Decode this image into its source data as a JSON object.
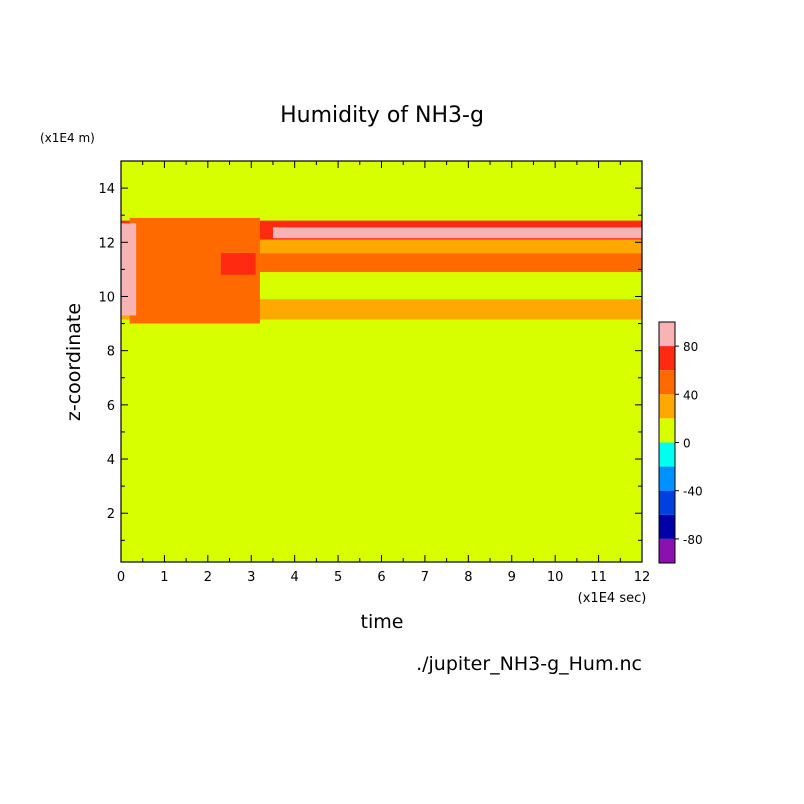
{
  "chart_data": {
    "type": "heatmap",
    "title": "Humidity of NH3-g",
    "xlabel": "time",
    "ylabel": "z-coordinate",
    "x_unit": "(x1E4 sec)",
    "y_unit": "(x1E4 m)",
    "source_file": "./jupiter_NH3-g_Hum.nc",
    "xlim": [
      0,
      12
    ],
    "ylim": [
      0.2,
      15
    ],
    "x_ticks": [
      "0",
      "1",
      "2",
      "3",
      "4",
      "5",
      "6",
      "7",
      "8",
      "9",
      "10",
      "11",
      "12"
    ],
    "y_ticks": [
      "2",
      "4",
      "6",
      "8",
      "10",
      "12",
      "14"
    ],
    "x_tick_values": [
      0,
      1,
      2,
      3,
      4,
      5,
      6,
      7,
      8,
      9,
      10,
      11,
      12
    ],
    "y_tick_values": [
      2,
      4,
      6,
      8,
      10,
      12,
      14
    ],
    "colorbar": {
      "range": [
        -100,
        100
      ],
      "tick_labels": [
        "80",
        "40",
        "0",
        "-40",
        "-80"
      ],
      "tick_values": [
        80,
        40,
        0,
        -40,
        -80
      ],
      "levels": [
        {
          "from": 80,
          "to": 100,
          "color": "#f8b4b4"
        },
        {
          "from": 60,
          "to": 80,
          "color": "#ff2a10"
        },
        {
          "from": 40,
          "to": 60,
          "color": "#ff6a00"
        },
        {
          "from": 20,
          "to": 40,
          "color": "#ffa800"
        },
        {
          "from": 0,
          "to": 20,
          "color": "#d8ff00"
        },
        {
          "from": -20,
          "to": 0,
          "color": "#00ffee"
        },
        {
          "from": -40,
          "to": -20,
          "color": "#0090ff"
        },
        {
          "from": -60,
          "to": -40,
          "color": "#0040e0"
        },
        {
          "from": -80,
          "to": -60,
          "color": "#0000a8"
        },
        {
          "from": -100,
          "to": -80,
          "color": "#8a10b0"
        }
      ]
    },
    "background_level_value": 10,
    "regions": [
      {
        "x": [
          0,
          12
        ],
        "z": [
          9.15,
          9.9
        ],
        "value": 30
      },
      {
        "x": [
          0,
          12
        ],
        "z": [
          10.9,
          11.6
        ],
        "value": 50
      },
      {
        "x": [
          0,
          12
        ],
        "z": [
          11.6,
          12.1
        ],
        "value": 30
      },
      {
        "x": [
          0,
          12
        ],
        "z": [
          12.1,
          12.8
        ],
        "value": 70
      },
      {
        "x": [
          3.5,
          12
        ],
        "z": [
          12.15,
          12.55
        ],
        "value": 90
      },
      {
        "x": [
          0.2,
          3.2
        ],
        "z": [
          9.0,
          12.9
        ],
        "value": 45
      },
      {
        "x": [
          0,
          0.35
        ],
        "z": [
          9.3,
          12.7
        ],
        "value": 90
      },
      {
        "x": [
          2.3,
          3.1
        ],
        "z": [
          10.8,
          11.6
        ],
        "value": 70
      }
    ]
  }
}
